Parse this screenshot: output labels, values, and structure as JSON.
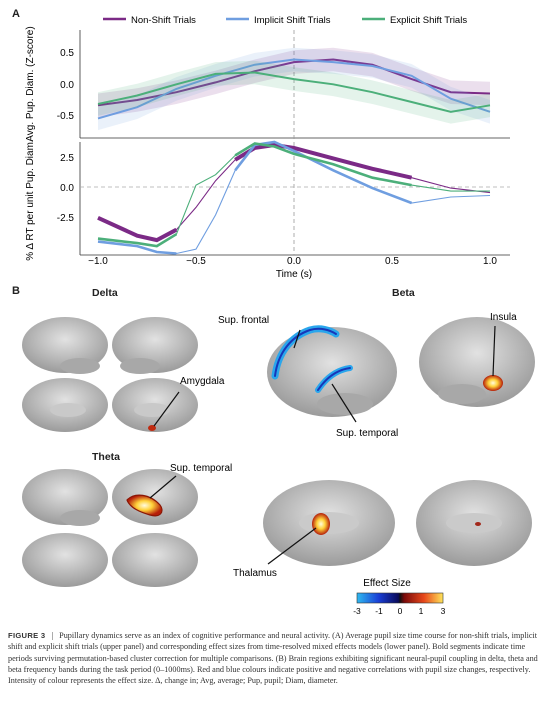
{
  "panel_a": {
    "letter": "A"
  },
  "panel_b": {
    "letter": "B"
  },
  "legend": {
    "non_shift": "Non-Shift Trials",
    "implicit": "Implicit Shift Trials",
    "explicit": "Explicit Shift Trials"
  },
  "colors": {
    "non_shift": "#7b2a86",
    "implicit": "#6f9ee0",
    "explicit": "#4caf7a"
  },
  "chart_data": [
    {
      "type": "line",
      "ylabel": "Avg. Pup. Diam. (Z-score)",
      "ylim": [
        -0.8,
        0.85
      ],
      "yticks": [
        "0.5",
        "0.0",
        "-0.5"
      ],
      "x": [
        -1.0,
        -0.8,
        -0.6,
        -0.4,
        -0.2,
        0.0,
        0.2,
        0.4,
        0.6,
        0.8,
        1.0
      ],
      "series": [
        {
          "name": "Non-Shift Trials",
          "values": [
            -0.3,
            -0.22,
            -0.1,
            0.05,
            0.22,
            0.36,
            0.4,
            0.32,
            0.1,
            -0.1,
            -0.12
          ]
        },
        {
          "name": "Implicit Shift Trials",
          "values": [
            -0.5,
            -0.33,
            -0.05,
            0.15,
            0.32,
            0.4,
            0.36,
            0.3,
            0.15,
            -0.2,
            -0.4
          ]
        },
        {
          "name": "Explicit Shift Trials",
          "values": [
            -0.28,
            -0.15,
            0.02,
            0.18,
            0.2,
            0.1,
            0.02,
            -0.1,
            -0.25,
            -0.4,
            -0.3
          ]
        }
      ]
    },
    {
      "type": "line",
      "ylabel": "% Δ RT per unit Pup. Diam.",
      "xlabel": "Time (s)",
      "xticks": [
        "−1.0",
        "−0.5",
        "0.0",
        "0.5",
        "1.0"
      ],
      "yticks": [
        "2.5",
        "0.0",
        "-2.5"
      ],
      "ylim": [
        -4.2,
        3.4
      ],
      "x": [
        -1.0,
        -0.8,
        -0.7,
        -0.6,
        -0.5,
        -0.4,
        -0.3,
        -0.2,
        -0.1,
        0.0,
        0.2,
        0.4,
        0.6,
        0.8,
        1.0
      ],
      "series": [
        {
          "name": "Non-Shift Trials",
          "values": [
            -1.7,
            -2.9,
            -3.2,
            -2.5,
            -1.0,
            0.8,
            2.2,
            3.0,
            3.2,
            3.0,
            2.3,
            1.6,
            1.0,
            0.3,
            0.0
          ]
        },
        {
          "name": "Implicit Shift Trials",
          "values": [
            -3.3,
            -3.6,
            -4.0,
            -4.1,
            -3.8,
            -1.5,
            1.5,
            3.2,
            3.4,
            2.8,
            1.5,
            0.3,
            -0.7,
            -0.3,
            -0.2
          ]
        },
        {
          "name": "Explicit Shift Trials",
          "values": [
            -3.1,
            -3.4,
            -3.6,
            -2.8,
            0.5,
            1.2,
            2.5,
            3.3,
            3.1,
            2.6,
            1.9,
            1.0,
            0.5,
            0.1,
            0.1
          ]
        }
      ]
    }
  ],
  "brains": {
    "delta": "Delta",
    "theta": "Theta",
    "beta": "Beta",
    "amygdala": "Amygdala",
    "sup_temporal_theta": "Sup. temporal",
    "sup_frontal": "Sup. frontal",
    "insula": "Insula",
    "sup_temporal_beta": "Sup. temporal",
    "thalamus": "Thalamus"
  },
  "colorbar": {
    "title": "Effect Size",
    "ticks": [
      "-3",
      "-1",
      "0",
      "1",
      "3"
    ]
  },
  "caption": {
    "label": "FIGURE 3",
    "separator": "|",
    "text": "Pupillary dynamics serve as an index of cognitive performance and neural activity. (A) Average pupil size time course for non-shift trials, implicit shift and explicit shift trials (upper panel) and corresponding effect sizes from time-resolved mixed effects models (lower panel). Bold segments indicate time periods surviving permutation-based cluster correction for multiple comparisons. (B) Brain regions exhibiting significant neural-pupil coupling in delta, theta and beta frequency bands during the task period (0–1000ms). Red and blue colours indicate positive and negative correlations with pupil size changes, respectively. Intensity of colour represents the effect size. Δ, change in; Avg, average; Pup, pupil; Diam, diameter."
  }
}
